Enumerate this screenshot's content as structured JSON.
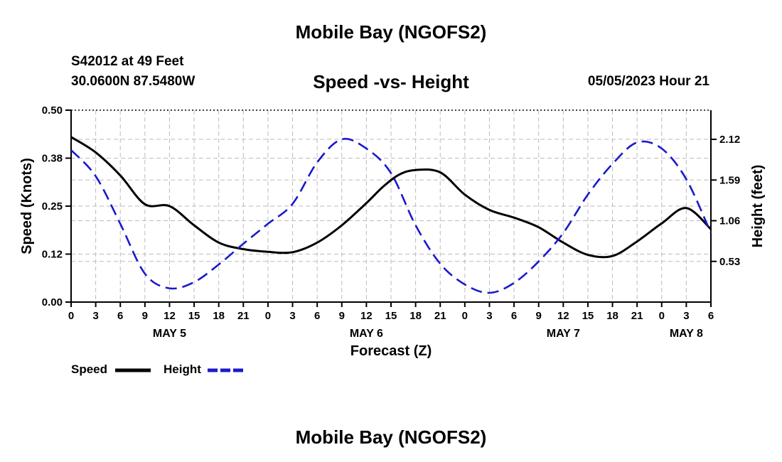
{
  "header": {
    "title": "Mobile Bay (NGOFS2)",
    "station": "S42012 at 49 Feet",
    "coords": "30.0600N  87.5480W",
    "subtitle": "Speed -vs- Height",
    "datetime": "05/05/2023 Hour 21"
  },
  "footer": {
    "title": "Mobile Bay (NGOFS2)"
  },
  "chart_data": {
    "type": "line",
    "title": "Speed -vs- Height",
    "xlabel": "Forecast (Z)",
    "ylabel_left": "Speed (Knots)",
    "ylabel_right": "Height (feet)",
    "x_range_hours": [
      0,
      78
    ],
    "x_tick_step_hours": 3,
    "x_tick_labels": [
      "0",
      "3",
      "6",
      "9",
      "12",
      "15",
      "18",
      "21",
      "0",
      "3",
      "6",
      "9",
      "12",
      "15",
      "18",
      "21",
      "0",
      "3",
      "6",
      "9",
      "12",
      "15",
      "18",
      "21",
      "0",
      "3",
      "6"
    ],
    "day_labels": [
      {
        "label": "MAY 5",
        "hour": 12
      },
      {
        "label": "MAY 6",
        "hour": 36
      },
      {
        "label": "MAY 7",
        "hour": 60
      },
      {
        "label": "MAY 8",
        "hour": 75
      }
    ],
    "ylim_left": [
      0,
      0.5
    ],
    "yticks_left": [
      "0.00",
      "0.12",
      "0.25",
      "0.38",
      "0.50"
    ],
    "ylim_right": [
      0,
      2.5
    ],
    "yticks_right": [
      "0.53",
      "1.06",
      "1.59",
      "2.12"
    ],
    "yticks_right_values": [
      0.53,
      1.06,
      1.59,
      2.12
    ],
    "grid": true,
    "legend": [
      {
        "name": "Speed",
        "color": "#000000",
        "style": "solid"
      },
      {
        "name": "Height",
        "color": "#1a1acc",
        "style": "dashed"
      }
    ],
    "series": [
      {
        "name": "Speed",
        "axis": "left",
        "color": "#000000",
        "x": [
          0,
          3,
          6,
          9,
          12,
          15,
          18,
          21,
          24,
          27,
          30,
          33,
          36,
          38,
          40,
          42,
          45,
          48,
          51,
          54,
          57,
          60,
          63,
          66,
          69,
          72,
          75,
          78
        ],
        "values": [
          0.43,
          0.39,
          0.33,
          0.255,
          0.25,
          0.2,
          0.155,
          0.138,
          0.131,
          0.13,
          0.155,
          0.2,
          0.258,
          0.3,
          0.332,
          0.344,
          0.338,
          0.28,
          0.24,
          0.22,
          0.195,
          0.155,
          0.123,
          0.12,
          0.158,
          0.205,
          0.245,
          0.19
        ]
      },
      {
        "name": "Height",
        "axis": "right",
        "color": "#1a1acc",
        "x": [
          0,
          3,
          6,
          9,
          12,
          15,
          18,
          21,
          24,
          27,
          30,
          33,
          36,
          39,
          42,
          45,
          48,
          51,
          54,
          57,
          60,
          63,
          66,
          69,
          72,
          75,
          78
        ],
        "values": [
          1.98,
          1.64,
          1.02,
          0.37,
          0.18,
          0.26,
          0.49,
          0.76,
          1.02,
          1.28,
          1.82,
          2.12,
          2.0,
          1.68,
          1.0,
          0.5,
          0.23,
          0.12,
          0.25,
          0.53,
          0.9,
          1.4,
          1.8,
          2.08,
          2.0,
          1.6,
          0.9
        ]
      }
    ]
  }
}
